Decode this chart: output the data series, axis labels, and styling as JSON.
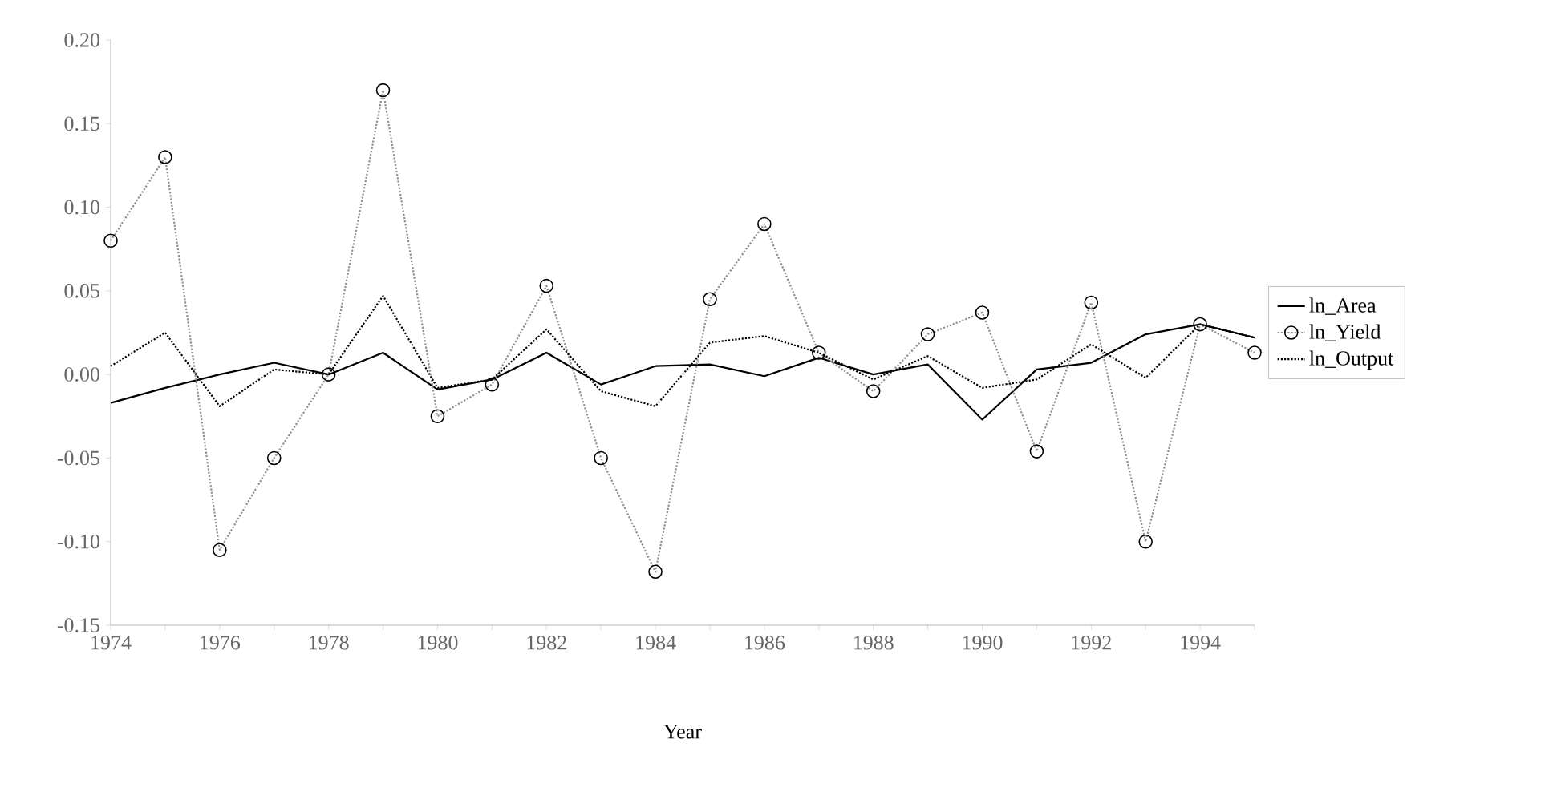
{
  "chart_data": {
    "type": "line",
    "xlabel": "Year",
    "categories": [
      "1974",
      null,
      "1976",
      null,
      "1978",
      null,
      "1980",
      null,
      "1982",
      null,
      "1984",
      null,
      "1986",
      null,
      "1988",
      null,
      "1990",
      null,
      "1992",
      null,
      "1994",
      null
    ],
    "series": [
      {
        "name": "ln_Area",
        "color": "#000000",
        "line_style": "solid",
        "marker": "none",
        "values": [
          -0.017,
          -0.008,
          0.0,
          0.007,
          0.0,
          0.013,
          -0.009,
          -0.003,
          0.013,
          -0.006,
          0.005,
          0.006,
          -0.001,
          0.01,
          0.0,
          0.006,
          -0.027,
          0.003,
          0.007,
          0.024,
          0.03,
          0.022
        ]
      },
      {
        "name": "ln_Yield",
        "color": "#909090",
        "line_style": "dotted",
        "marker": "circle",
        "values": [
          0.08,
          0.13,
          -0.105,
          -0.05,
          0.0,
          0.17,
          -0.025,
          -0.006,
          0.053,
          -0.05,
          -0.118,
          0.045,
          0.09,
          0.013,
          -0.01,
          0.024,
          0.037,
          -0.046,
          0.043,
          -0.1,
          0.03,
          0.013
        ]
      },
      {
        "name": "ln_Output",
        "color": "#000000",
        "line_style": "dotted",
        "marker": "none",
        "values": [
          0.005,
          0.025,
          -0.019,
          0.003,
          0.0,
          0.047,
          -0.008,
          -0.003,
          0.027,
          -0.01,
          -0.019,
          0.019,
          0.023,
          0.013,
          -0.003,
          0.011,
          -0.008,
          -0.003,
          0.018,
          -0.002,
          0.03,
          0.022
        ]
      }
    ],
    "ylim": [
      -0.15,
      0.2
    ],
    "yticks": [
      {
        "value": -0.15,
        "label": "-0.15"
      },
      {
        "value": -0.1,
        "label": "-0.10"
      },
      {
        "value": -0.05,
        "label": "-0.05"
      },
      {
        "value": 0.0,
        "label": "0.00"
      },
      {
        "value": 0.05,
        "label": "0.05"
      },
      {
        "value": 0.1,
        "label": "0.10"
      },
      {
        "value": 0.15,
        "label": "0.15"
      },
      {
        "value": 0.2,
        "label": "0.20"
      }
    ],
    "grid": false,
    "legend": "right"
  }
}
